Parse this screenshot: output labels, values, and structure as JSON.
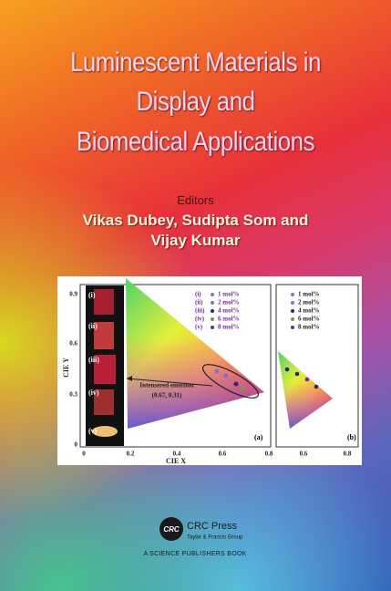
{
  "title": [
    "Luminescent Materials in",
    "Display and",
    "Biomedical Applications"
  ],
  "editors_label": "Editors",
  "editors": [
    "Vikas Dubey, Sudipta Som and",
    "Vijay Kumar"
  ],
  "figure": {
    "panel_a": {
      "image_labels": [
        "(i)",
        "(ii)",
        "(iii)",
        "(iv)",
        "(v)"
      ],
      "legend": [
        {
          "marker": "(i)",
          "text": "1 mol%"
        },
        {
          "marker": "(ii)",
          "text": "2 mol%"
        },
        {
          "marker": "(iii)",
          "text": "4 mol%"
        },
        {
          "marker": "(iv)",
          "text": "6 mol%"
        },
        {
          "marker": "(v)",
          "text": "8 mol%"
        }
      ],
      "annotation": "Intensered emission",
      "annotation_coords": "(0.67, 0.31)",
      "x_label": "CIE X",
      "y_label": "CIE Y",
      "x_ticks": [
        "0",
        "0.2",
        "0.4",
        "0.6",
        "0.8"
      ],
      "y_ticks": [
        "0",
        "0.3",
        "0.6",
        "0.9"
      ],
      "tag": "(a)"
    },
    "panel_b": {
      "legend": [
        "1 mol%",
        "2 mol%",
        "4 mol%",
        "6 mol%",
        "8 mol%"
      ],
      "x_ticks": [
        "0.6",
        "0.8"
      ],
      "tag": "(b)"
    }
  },
  "publisher": {
    "logo": "CRC",
    "name": "CRC Press",
    "group": "Taylor & Francis Group",
    "tagline": "A SCIENCE PUBLISHERS BOOK"
  }
}
